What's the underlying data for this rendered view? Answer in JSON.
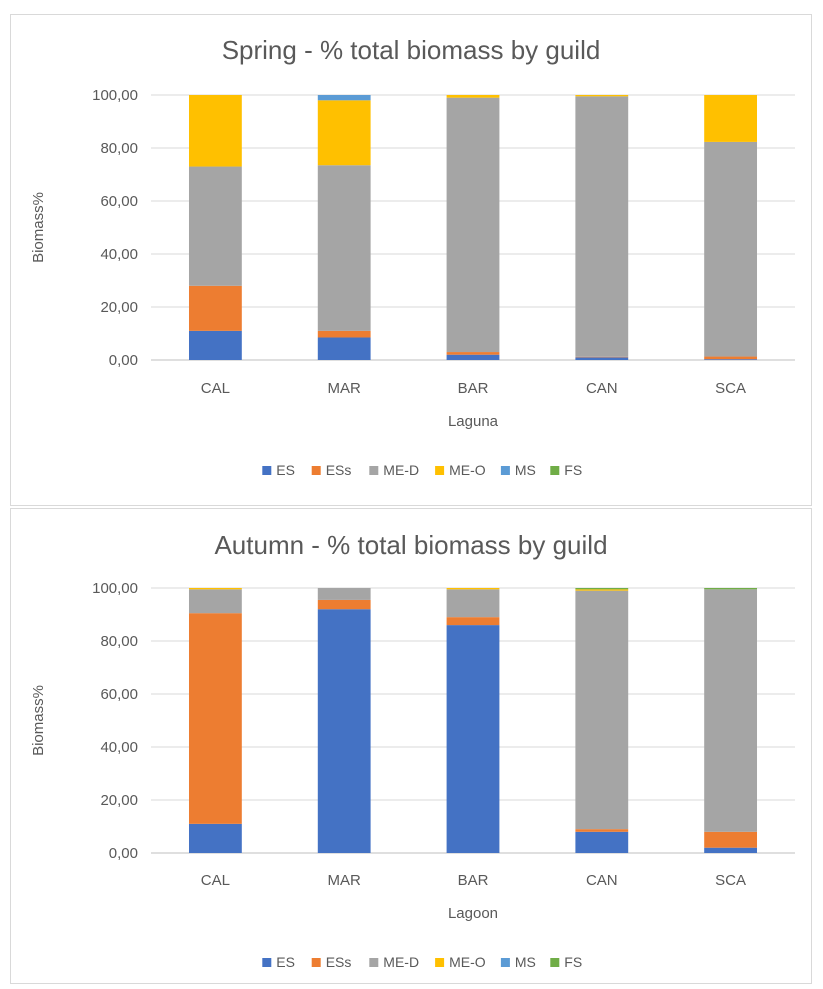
{
  "chart_data": [
    {
      "type": "bar",
      "stacked": true,
      "title": "Spring - % total biomass by guild",
      "xlabel": "Laguna",
      "ylabel": "Biomass%",
      "ylim": [
        0,
        100
      ],
      "yticks": [
        "0,00",
        "20,00",
        "40,00",
        "60,00",
        "80,00",
        "100,00"
      ],
      "grid": true,
      "legend_position": "bottom",
      "categories": [
        "CAL",
        "MAR",
        "BAR",
        "CAN",
        "SCA"
      ],
      "series": [
        {
          "name": "ES",
          "color": "#4472C4",
          "values": [
            11,
            8.5,
            2,
            1,
            0.3
          ]
        },
        {
          "name": "ESs",
          "color": "#ED7D31",
          "values": [
            17,
            2.5,
            1,
            0.2,
            1
          ]
        },
        {
          "name": "ME-D",
          "color": "#A5A5A5",
          "values": [
            45,
            62.5,
            96,
            98.3,
            81
          ]
        },
        {
          "name": "ME-O",
          "color": "#FFC000",
          "values": [
            27,
            24.5,
            1,
            0.5,
            17.7
          ]
        },
        {
          "name": "MS",
          "color": "#5B9BD5",
          "values": [
            0,
            2,
            0,
            0,
            0
          ]
        },
        {
          "name": "FS",
          "color": "#70AD47",
          "values": [
            0,
            0,
            0,
            0,
            0
          ]
        }
      ]
    },
    {
      "type": "bar",
      "stacked": true,
      "title": "Autumn - % total biomass by guild",
      "xlabel": "Lagoon",
      "ylabel": "Biomass%",
      "ylim": [
        0,
        100
      ],
      "yticks": [
        "0,00",
        "20,00",
        "40,00",
        "60,00",
        "80,00",
        "100,00"
      ],
      "grid": true,
      "legend_position": "bottom",
      "categories": [
        "CAL",
        "MAR",
        "BAR",
        "CAN",
        "SCA"
      ],
      "series": [
        {
          "name": "ES",
          "color": "#4472C4",
          "values": [
            11,
            92,
            86,
            8,
            2
          ]
        },
        {
          "name": "ESs",
          "color": "#ED7D31",
          "values": [
            79.5,
            3.5,
            3,
            1,
            6
          ]
        },
        {
          "name": "ME-D",
          "color": "#A5A5A5",
          "values": [
            9,
            4.5,
            10.5,
            90,
            91.5
          ]
        },
        {
          "name": "ME-O",
          "color": "#FFC000",
          "values": [
            0.5,
            0,
            0.5,
            0.5,
            0
          ]
        },
        {
          "name": "MS",
          "color": "#5B9BD5",
          "values": [
            0,
            0,
            0,
            0,
            0
          ]
        },
        {
          "name": "FS",
          "color": "#70AD47",
          "values": [
            0,
            0,
            0,
            0.5,
            0.5
          ]
        }
      ]
    }
  ]
}
